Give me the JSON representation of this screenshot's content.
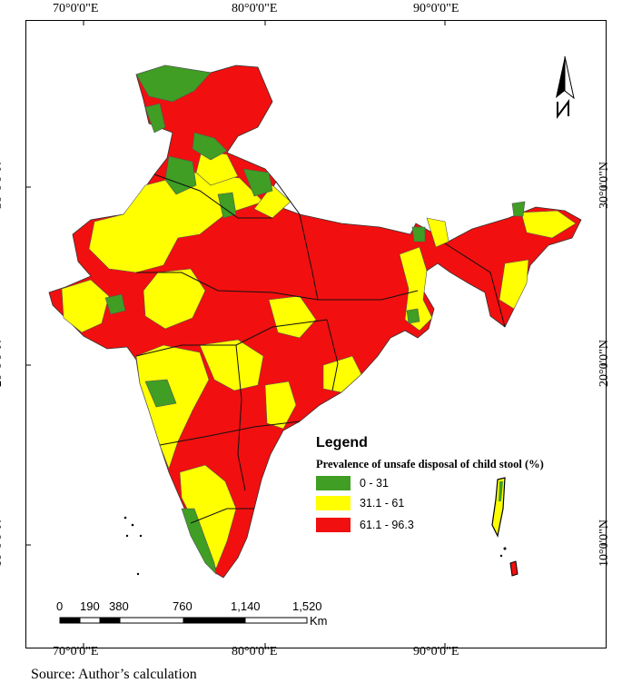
{
  "map": {
    "lon_ticks": [
      "70°0'0\"E",
      "80°0'0\"E",
      "90°0'0\"E"
    ],
    "lat_ticks": [
      "30°0'0\"N",
      "20°0'0\"N",
      "10°0'0\"N"
    ],
    "north_arrow": "north-arrow",
    "legend": {
      "title": "Legend",
      "subtitle": "Prevalence of unsafe disposal of child stool (%)",
      "classes": [
        {
          "label": "0 - 31",
          "color": "#3f9e23"
        },
        {
          "label": "31.1 - 61",
          "color": "#ffff00"
        },
        {
          "label": "61.1 - 96.3",
          "color": "#f20f0f"
        }
      ]
    },
    "scale_bar": {
      "labels": [
        "0",
        "190",
        "380",
        "760",
        "1,140",
        "1,520"
      ],
      "unit": "Km"
    },
    "source": "Source: Author’s calculation"
  }
}
